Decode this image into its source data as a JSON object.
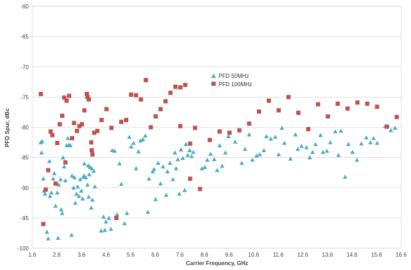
{
  "chart_data": {
    "type": "scatter",
    "xlabel": "Carrier Frequency, GHz",
    "ylabel": "PFD Spur, dBc",
    "xlim": [
      1.6,
      16.6
    ],
    "ylim": [
      -100,
      -60
    ],
    "x_ticks": [
      "1.6",
      "2.6",
      "3.6",
      "4.6",
      "5.6",
      "6.6",
      "7.6",
      "8.6",
      "9.6",
      "10.6",
      "11.6",
      "12.6",
      "13.6",
      "14.6",
      "15.6",
      "16.6"
    ],
    "y_ticks": [
      "-100",
      "-95",
      "-90",
      "-85",
      "-80",
      "-75",
      "-70",
      "-65",
      "-60"
    ],
    "grid": "horizontal",
    "legend_position": "center-top",
    "series": [
      {
        "name": "PFD 50MHz",
        "marker": "triangle",
        "color": "#4BACC6",
        "points": [
          [
            1.95,
            -82.5
          ],
          [
            2.0,
            -82.3
          ],
          [
            1.98,
            -84.2
          ],
          [
            2.05,
            -88.5
          ],
          [
            2.08,
            -90.5
          ],
          [
            2.12,
            -91.0
          ],
          [
            2.2,
            -97.3
          ],
          [
            2.25,
            -98.4
          ],
          [
            2.3,
            -85.6
          ],
          [
            2.32,
            -91.4
          ],
          [
            2.38,
            -90.8
          ],
          [
            2.45,
            -88.5
          ],
          [
            2.5,
            -87.6
          ],
          [
            2.55,
            -93.0
          ],
          [
            2.62,
            -90.8
          ],
          [
            2.65,
            -98.3
          ],
          [
            2.68,
            -89.5
          ],
          [
            2.75,
            -88.6
          ],
          [
            2.78,
            -93.6
          ],
          [
            2.82,
            -94.2
          ],
          [
            2.85,
            -85.0
          ],
          [
            2.9,
            -86.5
          ],
          [
            2.95,
            -88.8
          ],
          [
            3.0,
            -83.0
          ],
          [
            3.05,
            -81.8
          ],
          [
            3.1,
            -82.9
          ],
          [
            3.15,
            -83.0
          ],
          [
            3.2,
            -97.8
          ],
          [
            3.22,
            -88.0
          ],
          [
            3.28,
            -90.0
          ],
          [
            3.32,
            -88.3
          ],
          [
            3.35,
            -92.5
          ],
          [
            3.4,
            -91.0
          ],
          [
            3.45,
            -89.8
          ],
          [
            3.5,
            -91.4
          ],
          [
            3.55,
            -88.6
          ],
          [
            3.6,
            -90.5
          ],
          [
            3.65,
            -91.8
          ],
          [
            3.68,
            -88.2
          ],
          [
            3.7,
            -88.0
          ],
          [
            3.72,
            -86.0
          ],
          [
            3.78,
            -88.3
          ],
          [
            3.85,
            -89.5
          ],
          [
            3.88,
            -86.3
          ],
          [
            3.9,
            -91.5
          ],
          [
            3.92,
            -87.8
          ],
          [
            3.95,
            -86.6
          ],
          [
            4.0,
            -93.3
          ],
          [
            4.02,
            -86.8
          ],
          [
            4.05,
            -92.0
          ],
          [
            4.1,
            -87.2
          ],
          [
            4.15,
            -89.8
          ],
          [
            4.4,
            -97.1
          ],
          [
            4.5,
            -94.8
          ],
          [
            4.55,
            -97.0
          ],
          [
            4.6,
            -95.6
          ],
          [
            4.72,
            -95.0
          ],
          [
            4.8,
            -96.8
          ],
          [
            4.85,
            -83.8
          ],
          [
            4.95,
            -83.9
          ],
          [
            5.05,
            -94.4
          ],
          [
            5.15,
            -86.0
          ],
          [
            5.22,
            -89.4
          ],
          [
            5.35,
            -95.9
          ],
          [
            5.45,
            -94.2
          ],
          [
            5.55,
            -81.6
          ],
          [
            5.62,
            -83.2
          ],
          [
            5.72,
            -82.6
          ],
          [
            5.82,
            -86.8
          ],
          [
            5.92,
            -84.0
          ],
          [
            6.0,
            -82.2
          ],
          [
            6.1,
            -82.0
          ],
          [
            6.2,
            -81.4
          ],
          [
            6.3,
            -94.0
          ],
          [
            6.35,
            -88.5
          ],
          [
            6.5,
            -87.3
          ],
          [
            6.55,
            -86.9
          ],
          [
            6.62,
            -91.9
          ],
          [
            6.72,
            -85.9
          ],
          [
            6.82,
            -89.3
          ],
          [
            6.92,
            -86.5
          ],
          [
            7.05,
            -91.2
          ],
          [
            7.1,
            -87.3
          ],
          [
            7.2,
            -85.9
          ],
          [
            7.32,
            -88.6
          ],
          [
            7.4,
            -84.2
          ],
          [
            7.45,
            -86.8
          ],
          [
            7.52,
            -85.3
          ],
          [
            7.58,
            -91.0
          ],
          [
            7.65,
            -83.7
          ],
          [
            7.72,
            -85.1
          ],
          [
            7.8,
            -90.4
          ],
          [
            7.85,
            -82.8
          ],
          [
            7.92,
            -84.6
          ],
          [
            8.0,
            -83.8
          ],
          [
            8.08,
            -84.8
          ],
          [
            8.15,
            -84.1
          ],
          [
            8.5,
            -86.8
          ],
          [
            8.62,
            -86.6
          ],
          [
            8.72,
            -85.4
          ],
          [
            8.85,
            -84.4
          ],
          [
            9.0,
            -85.3
          ],
          [
            9.12,
            -87.1
          ],
          [
            9.22,
            -83.0
          ],
          [
            9.32,
            -86.4
          ],
          [
            9.45,
            -84.2
          ],
          [
            9.58,
            -81.5
          ],
          [
            9.85,
            -82.4
          ],
          [
            10.12,
            -85.9
          ],
          [
            10.25,
            -83.6
          ],
          [
            10.42,
            -81.2
          ],
          [
            10.55,
            -85.4
          ],
          [
            10.72,
            -84.7
          ],
          [
            10.85,
            -84.5
          ],
          [
            11.02,
            -83.8
          ],
          [
            11.12,
            -81.5
          ],
          [
            11.3,
            -81.9
          ],
          [
            11.48,
            -81.6
          ],
          [
            11.62,
            -84.5
          ],
          [
            11.75,
            -80.1
          ],
          [
            11.85,
            -82.6
          ],
          [
            12.1,
            -85.2
          ],
          [
            12.3,
            -81.2
          ],
          [
            12.4,
            -83.6
          ],
          [
            12.55,
            -83.1
          ],
          [
            12.75,
            -83.3
          ],
          [
            12.88,
            -85.0
          ],
          [
            13.0,
            -84.1
          ],
          [
            13.12,
            -82.8
          ],
          [
            13.32,
            -81.3
          ],
          [
            13.42,
            -84.1
          ],
          [
            13.58,
            -83.9
          ],
          [
            13.72,
            -82.5
          ],
          [
            13.92,
            -80.7
          ],
          [
            14.05,
            -84.6
          ],
          [
            14.15,
            -80.6
          ],
          [
            14.32,
            -88.2
          ],
          [
            14.45,
            -82.8
          ],
          [
            14.62,
            -84.1
          ],
          [
            14.8,
            -85.4
          ],
          [
            14.98,
            -82.7
          ],
          [
            15.18,
            -81.7
          ],
          [
            15.35,
            -82.5
          ],
          [
            15.48,
            -81.8
          ],
          [
            15.62,
            -82.6
          ],
          [
            15.95,
            -79.8
          ],
          [
            16.18,
            -80.5
          ],
          [
            16.35,
            -80.1
          ]
        ]
      },
      {
        "name": "PFD 100MHz",
        "marker": "square",
        "color": "#C0504D",
        "points": [
          [
            1.95,
            -74.5
          ],
          [
            2.05,
            -96.0
          ],
          [
            2.15,
            -90.3
          ],
          [
            2.25,
            -87.1
          ],
          [
            2.35,
            -80.7
          ],
          [
            2.42,
            -81.3
          ],
          [
            2.55,
            -89.3
          ],
          [
            2.62,
            -82.6
          ],
          [
            2.72,
            -79.5
          ],
          [
            2.82,
            -78.1
          ],
          [
            2.9,
            -75.1
          ],
          [
            2.95,
            -85.8
          ],
          [
            3.0,
            -75.6
          ],
          [
            3.1,
            -74.8
          ],
          [
            3.22,
            -81.8
          ],
          [
            3.3,
            -79.3
          ],
          [
            3.42,
            -80.6
          ],
          [
            3.52,
            -79.8
          ],
          [
            3.62,
            -79.5
          ],
          [
            3.72,
            -77.2
          ],
          [
            3.82,
            -74.5
          ],
          [
            3.85,
            -75.0
          ],
          [
            3.9,
            -75.4
          ],
          [
            4.0,
            -82.5
          ],
          [
            4.02,
            -83.8
          ],
          [
            4.05,
            -84.5
          ],
          [
            4.12,
            -80.9
          ],
          [
            4.25,
            -80.6
          ],
          [
            4.42,
            -78.8
          ],
          [
            4.62,
            -77.0
          ],
          [
            4.82,
            -80.1
          ],
          [
            5.02,
            -95.0
          ],
          [
            5.22,
            -79.1
          ],
          [
            5.42,
            -78.8
          ],
          [
            5.62,
            -74.6
          ],
          [
            5.82,
            -74.7
          ],
          [
            6.02,
            -75.4
          ],
          [
            6.22,
            -72.2
          ],
          [
            6.42,
            -80.0
          ],
          [
            6.62,
            -78.2
          ],
          [
            6.82,
            -77.0
          ],
          [
            7.02,
            -75.7
          ],
          [
            7.22,
            -74.3
          ],
          [
            7.42,
            -73.3
          ],
          [
            7.62,
            -73.4
          ],
          [
            7.62,
            -79.8
          ],
          [
            7.82,
            -73.0
          ],
          [
            8.02,
            -82.7
          ],
          [
            8.02,
            -88.5
          ],
          [
            8.22,
            -80.1
          ],
          [
            8.42,
            -90.2
          ],
          [
            8.82,
            -82.1
          ],
          [
            9.22,
            -80.7
          ],
          [
            9.62,
            -80.9
          ],
          [
            10.02,
            -80.5
          ],
          [
            10.42,
            -79.4
          ],
          [
            10.82,
            -77.4
          ],
          [
            11.22,
            -75.6
          ],
          [
            11.62,
            -77.2
          ],
          [
            12.02,
            -75.0
          ],
          [
            12.42,
            -77.6
          ],
          [
            12.82,
            -80.3
          ],
          [
            13.22,
            -76.2
          ],
          [
            13.62,
            -78.2
          ],
          [
            14.02,
            -76.1
          ],
          [
            14.42,
            -76.9
          ],
          [
            14.82,
            -75.9
          ],
          [
            15.22,
            -76.1
          ],
          [
            15.62,
            -76.6
          ],
          [
            16.02,
            -79.9
          ],
          [
            16.42,
            -78.3
          ]
        ]
      }
    ]
  }
}
